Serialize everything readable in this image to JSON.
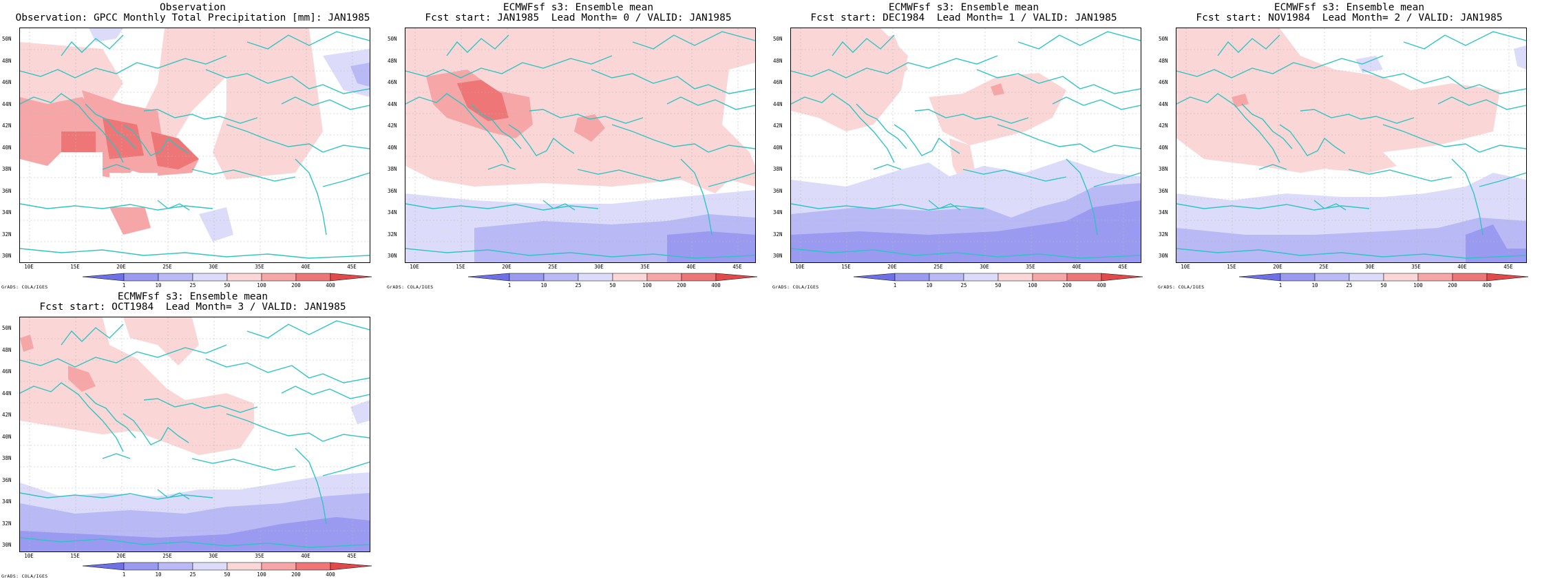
{
  "layout_note_free": true,
  "colors": {
    "coast": "#2ec4c4",
    "grid": "#b8b8b8",
    "wet_light": "#fbd6d6",
    "wet_mid": "#f6a6a6",
    "wet_strong": "#ee7676",
    "dry_light": "#dcdcfa",
    "dry_mid": "#b9b9f5",
    "dry_strong": "#9a9af0"
  },
  "colorbar": {
    "labels": [
      "1",
      "10",
      "25",
      "50",
      "100",
      "200",
      "400"
    ],
    "colors": [
      "#6f6fe6",
      "#9a9af0",
      "#b9b9f5",
      "#dcdcfa",
      "#fbd6d6",
      "#f6a6a6",
      "#ee7676",
      "#e14a4a"
    ]
  },
  "axis": {
    "lat_labels": [
      "50N",
      "48N",
      "46N",
      "44N",
      "42N",
      "40N",
      "38N",
      "36N",
      "34N",
      "32N",
      "30N"
    ],
    "lon_labels": [
      "10E",
      "15E",
      "20E",
      "25E",
      "30E",
      "35E",
      "40E",
      "45E"
    ]
  },
  "credit": "GrADS: COLA/IGES",
  "panels": [
    {
      "id": "obs",
      "title1": "Observation",
      "title2": "Observation: GPCC Monthly Total Precipitation [mm]: JAN1985"
    },
    {
      "id": "lead0",
      "title1": "ECMWFsf s3: Ensemble mean",
      "title2": "Fcst start: JAN1985  Lead Month= 0 / VALID: JAN1985"
    },
    {
      "id": "lead1",
      "title1": "ECMWFsf s3: Ensemble mean",
      "title2": "Fcst start: DEC1984  Lead Month= 1 / VALID: JAN1985"
    },
    {
      "id": "lead2",
      "title1": "ECMWFsf s3: Ensemble mean",
      "title2": "Fcst start: NOV1984  Lead Month= 2 / VALID: JAN1985"
    },
    {
      "id": "lead3",
      "title1": "ECMWFsf s3: Ensemble mean",
      "title2": "Fcst start: OCT1984  Lead Month= 3 / VALID: JAN1985"
    }
  ]
}
